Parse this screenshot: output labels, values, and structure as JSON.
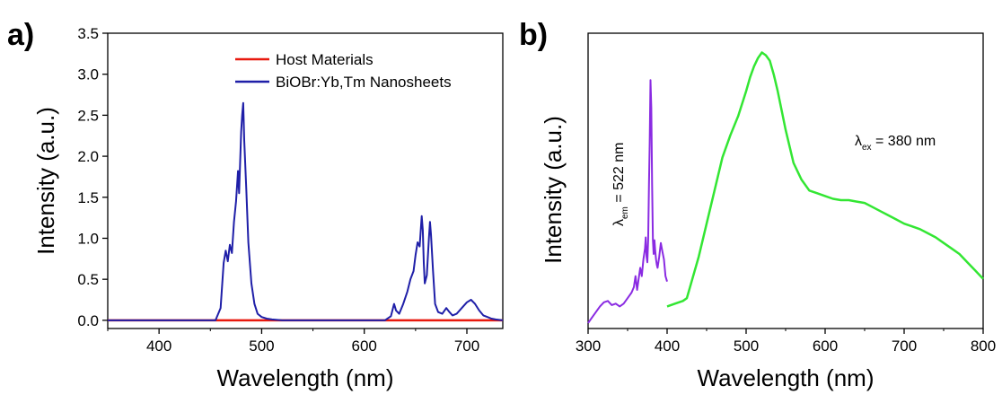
{
  "chart_data": [
    {
      "panel_label": "a)",
      "type": "line",
      "xlabel": "Wavelength (nm)",
      "ylabel": "Intensity (a.u.)",
      "xlim": [
        350,
        735
      ],
      "ylim": [
        -0.1,
        3.5
      ],
      "x_ticks": [
        400,
        500,
        600,
        700
      ],
      "x_tick_labels": [
        "400",
        "500",
        "600",
        "700"
      ],
      "y_ticks": [
        0.0,
        0.5,
        1.0,
        1.5,
        2.0,
        2.5,
        3.0,
        3.5
      ],
      "y_tick_labels": [
        "0.0",
        "0.5",
        "1.0",
        "1.5",
        "2.0",
        "2.5",
        "3.0",
        "3.5"
      ],
      "legend_position": "top-right",
      "series": [
        {
          "name": "Host Materials",
          "color": "#e8190e",
          "x": [
            350,
            735
          ],
          "y": [
            0.0,
            0.0
          ]
        },
        {
          "name": "BiOBr:Yb,Tm Nanosheets",
          "color": "#1f1fa8",
          "x": [
            350,
            455,
            460,
            463,
            465,
            467,
            469,
            471,
            473,
            475,
            477,
            478,
            480,
            481,
            482,
            483,
            485,
            487,
            490,
            493,
            496,
            500,
            505,
            510,
            520,
            540,
            580,
            620,
            626,
            629,
            631,
            634,
            638,
            642,
            645,
            648,
            650,
            652,
            654,
            656,
            657,
            658,
            659,
            661,
            663,
            664,
            665,
            667,
            669,
            672,
            676,
            680,
            683,
            686,
            690,
            695,
            700,
            704,
            708,
            712,
            716,
            720,
            724,
            728,
            735
          ],
          "y": [
            0.0,
            0.0,
            0.15,
            0.7,
            0.85,
            0.72,
            0.92,
            0.82,
            1.2,
            1.45,
            1.82,
            1.55,
            2.3,
            2.5,
            2.65,
            2.2,
            1.6,
            0.95,
            0.45,
            0.2,
            0.08,
            0.04,
            0.02,
            0.01,
            0.0,
            0.0,
            0.0,
            0.0,
            0.05,
            0.2,
            0.12,
            0.08,
            0.2,
            0.35,
            0.5,
            0.6,
            0.8,
            0.95,
            0.9,
            1.27,
            1.1,
            0.7,
            0.45,
            0.55,
            1.0,
            1.2,
            1.05,
            0.6,
            0.2,
            0.1,
            0.08,
            0.15,
            0.1,
            0.06,
            0.08,
            0.15,
            0.22,
            0.25,
            0.2,
            0.12,
            0.06,
            0.04,
            0.02,
            0.01,
            0.0
          ]
        }
      ]
    },
    {
      "panel_label": "b)",
      "type": "line",
      "xlabel": "Wavelength (nm)",
      "ylabel": "Intensity (a.u.)",
      "xlim": [
        300,
        800
      ],
      "ylim": [
        0,
        1.0
      ],
      "x_ticks": [
        300,
        400,
        500,
        600,
        700,
        800
      ],
      "x_tick_labels": [
        "300",
        "400",
        "500",
        "600",
        "700",
        "800"
      ],
      "y_ticks_shown": false,
      "annotations": {
        "emission": {
          "main": "λ",
          "sub": "em",
          "rest": " = 522 nm"
        },
        "excitation": {
          "main": "λ",
          "sub": "ex",
          "rest": " = 380 nm"
        }
      },
      "series": [
        {
          "color": "#8a2be2",
          "x": [
            300,
            305,
            310,
            315,
            320,
            325,
            330,
            335,
            340,
            345,
            350,
            355,
            358,
            360,
            362,
            364,
            366,
            368,
            370,
            372,
            373,
            374,
            375,
            376,
            377,
            378,
            379,
            380,
            381,
            382,
            383,
            384,
            385,
            386,
            387,
            388,
            390,
            392,
            394,
            396,
            398,
            400
          ],
          "y": [
            0.0,
            0.02,
            0.04,
            0.06,
            0.075,
            0.08,
            0.065,
            0.07,
            0.06,
            0.07,
            0.09,
            0.11,
            0.13,
            0.17,
            0.12,
            0.16,
            0.2,
            0.17,
            0.23,
            0.27,
            0.31,
            0.24,
            0.22,
            0.3,
            0.5,
            0.65,
            0.88,
            0.78,
            0.5,
            0.3,
            0.25,
            0.3,
            0.26,
            0.23,
            0.21,
            0.2,
            0.24,
            0.29,
            0.26,
            0.23,
            0.17,
            0.15
          ]
        },
        {
          "color": "#33e633",
          "x": [
            400,
            410,
            420,
            425,
            430,
            440,
            450,
            460,
            470,
            480,
            490,
            500,
            505,
            510,
            515,
            520,
            525,
            530,
            535,
            540,
            545,
            550,
            555,
            560,
            570,
            580,
            590,
            600,
            610,
            620,
            630,
            640,
            650,
            660,
            670,
            680,
            690,
            700,
            710,
            720,
            730,
            740,
            750,
            760,
            770,
            780,
            790,
            800
          ],
          "y": [
            0.06,
            0.07,
            0.08,
            0.09,
            0.14,
            0.24,
            0.36,
            0.48,
            0.6,
            0.68,
            0.75,
            0.84,
            0.89,
            0.93,
            0.96,
            0.98,
            0.97,
            0.95,
            0.9,
            0.84,
            0.77,
            0.7,
            0.64,
            0.58,
            0.52,
            0.48,
            0.47,
            0.46,
            0.45,
            0.445,
            0.445,
            0.44,
            0.435,
            0.42,
            0.405,
            0.39,
            0.375,
            0.36,
            0.35,
            0.34,
            0.325,
            0.31,
            0.29,
            0.27,
            0.25,
            0.22,
            0.19,
            0.16
          ]
        }
      ]
    }
  ]
}
